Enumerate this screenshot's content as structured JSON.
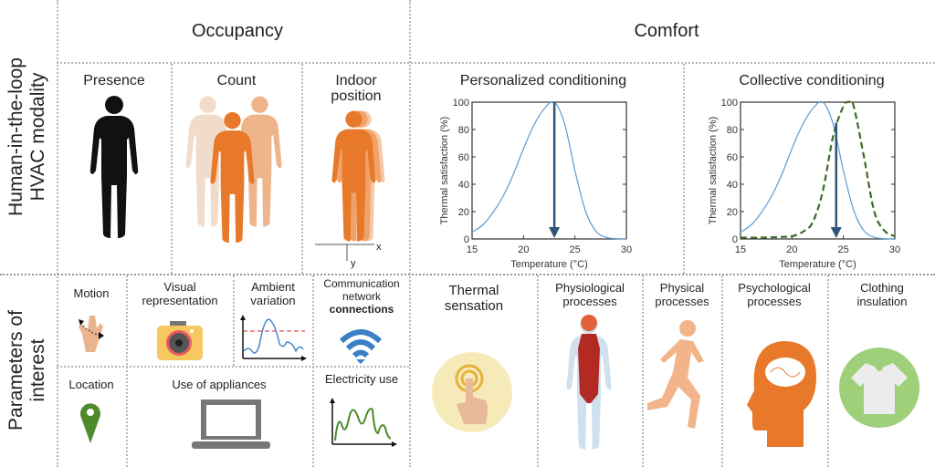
{
  "row_labels": {
    "modality": [
      "Human-in-the-loop",
      "HVAC modality"
    ],
    "parameters": [
      "Parameters of",
      "interest"
    ]
  },
  "columns": {
    "occupancy": "Occupancy",
    "comfort": "Comfort"
  },
  "occupancy": {
    "presence": "Presence",
    "count": "Count",
    "indoor_position": [
      "Indoor",
      "position"
    ],
    "axis_x": "x",
    "axis_y": "y"
  },
  "colors": {
    "person_orange": "#e8792a",
    "person_black": "#111111",
    "curve_blue": "#5b9bd5",
    "curve_green": "#3d6b2a",
    "arrow": "#2e5478"
  },
  "chart_data": [
    {
      "type": "line",
      "title": "Personalized conditioning",
      "xlabel": "Temperature (°C)",
      "ylabel": "Thermal satisfaction (%)",
      "xlim": [
        15,
        30
      ],
      "ylim": [
        0,
        100
      ],
      "xticks": [
        "15",
        "20",
        "25",
        "30"
      ],
      "yticks": [
        "0",
        "20",
        "40",
        "60",
        "80",
        "100"
      ],
      "series": [
        {
          "style": "solid",
          "color": "#5b9bd5",
          "x": [
            15,
            16,
            17,
            18,
            19,
            20,
            21,
            22,
            23,
            24,
            25,
            26,
            27,
            28,
            29,
            30
          ],
          "y": [
            5,
            10,
            19,
            31,
            47,
            66,
            83,
            95,
            100,
            84,
            50,
            21,
            6,
            1.3,
            0.2,
            0
          ]
        }
      ],
      "arrow": {
        "x": 23,
        "from_y": 100,
        "to_y": 0
      }
    },
    {
      "type": "line",
      "title": "Collective conditioning",
      "xlabel": "Temperature (°C)",
      "ylabel": "Thermal satisfaction (%)",
      "xlim": [
        15,
        30
      ],
      "ylim": [
        0,
        100
      ],
      "xticks": [
        "15",
        "20",
        "25",
        "30"
      ],
      "yticks": [
        "0",
        "20",
        "40",
        "60",
        "80",
        "100"
      ],
      "series": [
        {
          "style": "solid",
          "color": "#5b9bd5",
          "x": [
            15,
            16,
            17,
            18,
            19,
            20,
            21,
            22,
            23,
            24,
            25,
            26,
            27,
            28,
            29,
            30
          ],
          "y": [
            5,
            10,
            19,
            31,
            47,
            66,
            83,
            95,
            100,
            84,
            50,
            21,
            6,
            1.3,
            0.2,
            0
          ]
        },
        {
          "style": "dashed",
          "color": "#3d6b2a",
          "x": [
            15,
            17,
            19,
            20,
            21,
            22,
            23,
            24,
            25,
            25.5,
            26,
            27,
            28,
            29,
            30
          ],
          "y": [
            1,
            1,
            1.5,
            2,
            5,
            12,
            35,
            75,
            97,
            100,
            97,
            60,
            20,
            6,
            2
          ]
        }
      ],
      "arrow": {
        "x": 24.3,
        "from_y": 85,
        "to_y": 0
      }
    }
  ],
  "parameters": {
    "motion": "Motion",
    "visual": [
      "Visual",
      "representation"
    ],
    "ambient": [
      "Ambient",
      "variation"
    ],
    "communication": [
      "Communication",
      "network",
      "connections"
    ],
    "location": "Location",
    "appliances": "Use of appliances",
    "electricity": "Electricity use",
    "thermal_sensation": [
      "Thermal",
      "sensation"
    ],
    "physiological": [
      "Physiological",
      "processes"
    ],
    "physical": [
      "Physical",
      "processes"
    ],
    "psychological": [
      "Psychological",
      "processes"
    ],
    "clothing": [
      "Clothing",
      "insulation"
    ]
  }
}
